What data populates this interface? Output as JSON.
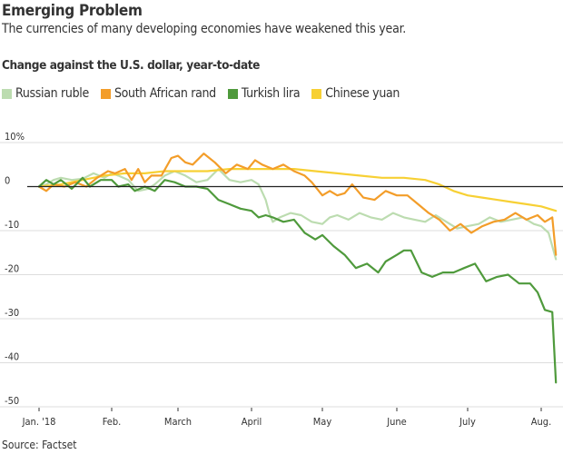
{
  "title": "Emerging Problem",
  "subtitle": "The currencies of many developing economies have weakened this year.",
  "source": "Source: Factset",
  "chart_data": {
    "type": "line",
    "title": "Change against the U.S. dollar, year-to-date",
    "xlabel": "",
    "ylabel": "",
    "ylim": [
      -50,
      10
    ],
    "yticks": [
      10,
      0,
      -10,
      -20,
      -30,
      -40,
      -50
    ],
    "ytick_labels": [
      "10%",
      "0",
      "-10",
      "-20",
      "-30",
      "-40",
      "-50"
    ],
    "xticks": [
      0,
      1,
      2,
      3,
      4,
      5,
      6,
      7
    ],
    "xtick_labels": [
      "Jan. '18",
      "Feb.",
      "March",
      "April",
      "May",
      "June",
      "July",
      "Aug."
    ],
    "x_unit": "months since Jan. 1, 2018",
    "grid": true,
    "legend_position": "top-left",
    "series": [
      {
        "name": "Russian ruble",
        "color": "#bcdcb0",
        "x": [
          0,
          0.1,
          0.2,
          0.3,
          0.45,
          0.6,
          0.75,
          0.9,
          1.0,
          1.1,
          1.25,
          1.4,
          1.55,
          1.65,
          1.8,
          1.95,
          2.1,
          2.25,
          2.4,
          2.55,
          2.7,
          2.85,
          3.0,
          3.1,
          3.2,
          3.25,
          3.3,
          3.4,
          3.55,
          3.7,
          3.85,
          4.0,
          4.1,
          4.2,
          4.35,
          4.5,
          4.65,
          4.8,
          4.95,
          5.1,
          5.25,
          5.4,
          5.55,
          5.7,
          5.85,
          6.0,
          6.15,
          6.3,
          6.45,
          6.6,
          6.75,
          6.9,
          7.0,
          7.1,
          7.2
        ],
        "values": [
          0,
          0.5,
          1.5,
          2.0,
          1.5,
          1.8,
          3.0,
          2.0,
          3.0,
          2.5,
          1.5,
          -1.0,
          -0.5,
          0.5,
          2.5,
          3.5,
          2.5,
          1.0,
          1.5,
          4.0,
          1.5,
          1.0,
          1.5,
          0.5,
          -3.0,
          -6.0,
          -8.0,
          -7.0,
          -6.0,
          -6.5,
          -8.0,
          -8.5,
          -7.0,
          -6.5,
          -7.5,
          -6.0,
          -7.0,
          -7.5,
          -6.0,
          -7.0,
          -7.5,
          -8.0,
          -6.5,
          -8.0,
          -9.5,
          -9.0,
          -8.5,
          -7.0,
          -8.0,
          -7.5,
          -7.0,
          -8.5,
          -9.0,
          -10.5,
          -16.5
        ]
      },
      {
        "name": "South African rand",
        "color": "#f39d29",
        "x": [
          0,
          0.1,
          0.2,
          0.35,
          0.5,
          0.65,
          0.8,
          0.95,
          1.05,
          1.2,
          1.3,
          1.4,
          1.5,
          1.6,
          1.75,
          1.9,
          2.0,
          2.1,
          2.2,
          2.35,
          2.5,
          2.65,
          2.8,
          2.95,
          3.05,
          3.15,
          3.3,
          3.45,
          3.6,
          3.75,
          3.85,
          4.0,
          4.1,
          4.2,
          4.3,
          4.4,
          4.55,
          4.7,
          4.85,
          5.0,
          5.15,
          5.3,
          5.45,
          5.6,
          5.75,
          5.9,
          6.05,
          6.2,
          6.35,
          6.5,
          6.65,
          6.8,
          6.95,
          7.05,
          7.15,
          7.2
        ],
        "values": [
          0,
          -1.0,
          0.5,
          0,
          1.0,
          0,
          2.0,
          3.5,
          3.0,
          4.0,
          1.5,
          4.0,
          1.0,
          2.5,
          2.5,
          6.5,
          7.0,
          5.5,
          5.0,
          7.5,
          5.5,
          3.0,
          5.0,
          4.0,
          6.0,
          5.0,
          4.0,
          5.0,
          3.5,
          2.5,
          1.0,
          -2.0,
          -1.0,
          -2.0,
          -1.5,
          0.5,
          -2.5,
          -3.0,
          -1.0,
          -2.0,
          -2.0,
          -4.0,
          -6.0,
          -7.5,
          -10.0,
          -8.5,
          -10.5,
          -9.0,
          -8.0,
          -7.5,
          -6.0,
          -7.5,
          -6.5,
          -8.0,
          -7.0,
          -15.5
        ]
      },
      {
        "name": "Turkish lira",
        "color": "#4f9a3c",
        "x": [
          0,
          0.1,
          0.2,
          0.3,
          0.45,
          0.6,
          0.7,
          0.85,
          1.0,
          1.1,
          1.25,
          1.35,
          1.5,
          1.65,
          1.8,
          1.95,
          2.1,
          2.25,
          2.4,
          2.55,
          2.7,
          2.85,
          3.0,
          3.1,
          3.2,
          3.3,
          3.45,
          3.6,
          3.75,
          3.9,
          4.0,
          4.15,
          4.3,
          4.45,
          4.6,
          4.75,
          4.85,
          5.0,
          5.1,
          5.2,
          5.35,
          5.5,
          5.65,
          5.8,
          5.95,
          6.1,
          6.25,
          6.4,
          6.55,
          6.7,
          6.85,
          6.95,
          7.05,
          7.15,
          7.2
        ],
        "values": [
          0,
          1.5,
          0.5,
          1.5,
          -0.5,
          2.0,
          0,
          1.5,
          1.5,
          0,
          0.5,
          -1.0,
          0,
          -1.0,
          1.5,
          1.0,
          0,
          0,
          -0.5,
          -3.0,
          -4.0,
          -5.0,
          -5.5,
          -7.0,
          -6.5,
          -7.0,
          -8.0,
          -7.5,
          -10.5,
          -12.0,
          -11.0,
          -13.5,
          -15.5,
          -18.5,
          -17.5,
          -19.5,
          -17.0,
          -15.5,
          -14.5,
          -14.5,
          -19.5,
          -20.5,
          -19.5,
          -19.5,
          -18.5,
          -17.5,
          -21.5,
          -20.5,
          -20.0,
          -22.0,
          -22.0,
          -24.0,
          -28.0,
          -28.5,
          -44.5
        ]
      },
      {
        "name": "Chinese yuan",
        "color": "#f7d034",
        "x": [
          0,
          0.3,
          0.6,
          0.9,
          1.2,
          1.5,
          1.8,
          2.1,
          2.4,
          2.7,
          3.0,
          3.3,
          3.6,
          3.9,
          4.2,
          4.5,
          4.8,
          5.1,
          5.4,
          5.6,
          5.8,
          6.0,
          6.2,
          6.4,
          6.6,
          6.8,
          7.0,
          7.2
        ],
        "values": [
          0,
          0.5,
          1.5,
          2.5,
          3.0,
          3.0,
          3.5,
          3.5,
          3.5,
          4.0,
          4.0,
          4.0,
          4.0,
          3.5,
          3.0,
          2.5,
          2.0,
          2.0,
          1.5,
          0.5,
          -1.0,
          -2.0,
          -2.5,
          -3.0,
          -3.5,
          -4.0,
          -4.5,
          -5.5
        ]
      }
    ]
  }
}
